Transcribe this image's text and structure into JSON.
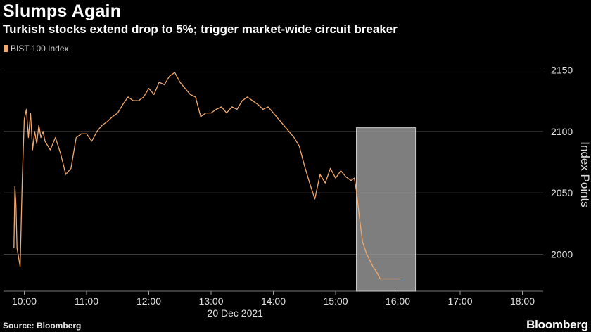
{
  "header": {
    "title": "Slumps Again",
    "subtitle": "Turkish stocks extend drop to 5%; trigger market-wide circuit breaker"
  },
  "footer": {
    "source": "Source: Bloomberg",
    "brand": "Bloomberg"
  },
  "colors": {
    "series": "#f2a96e",
    "highlight": "#9a9a9a",
    "grid": "#444444",
    "background": "#000000"
  },
  "chart_data": {
    "type": "line",
    "title": "Slumps Again",
    "subtitle": "Turkish stocks extend drop to 5%; trigger market-wide circuit breaker",
    "xlabel": "20 Dec 2021",
    "ylabel": "Index Points",
    "x_ticks": [
      "10:00",
      "11:00",
      "12:00",
      "13:00",
      "14:00",
      "15:00",
      "16:00",
      "17:00",
      "18:00"
    ],
    "y_ticks": [
      2000,
      2050,
      2100,
      2150
    ],
    "ylim": [
      1970,
      2160
    ],
    "legend_position": "top-left",
    "grid": "horizontal",
    "highlight_band": {
      "x_start": "15:20",
      "x_end": "16:17",
      "y_bottom": 1970,
      "y_top": 2103
    },
    "series": [
      {
        "name": "BIST 100 Index",
        "color": "#f2a96e",
        "x": [
          "09:50",
          "09:51",
          "09:52",
          "09:53",
          "09:54",
          "09:56",
          "09:58",
          "10:00",
          "10:02",
          "10:04",
          "10:06",
          "10:08",
          "10:10",
          "10:12",
          "10:14",
          "10:16",
          "10:18",
          "10:20",
          "10:25",
          "10:30",
          "10:35",
          "10:40",
          "10:45",
          "10:50",
          "10:55",
          "11:00",
          "11:05",
          "11:10",
          "11:15",
          "11:20",
          "11:25",
          "11:30",
          "11:35",
          "11:40",
          "11:45",
          "11:50",
          "11:55",
          "12:00",
          "12:05",
          "12:10",
          "12:15",
          "12:20",
          "12:25",
          "12:30",
          "12:35",
          "12:40",
          "12:45",
          "12:50",
          "12:55",
          "13:00",
          "13:05",
          "13:10",
          "13:15",
          "13:20",
          "13:25",
          "13:30",
          "13:35",
          "13:40",
          "13:45",
          "13:50",
          "13:55",
          "14:00",
          "14:05",
          "14:10",
          "14:15",
          "14:20",
          "14:25",
          "14:30",
          "14:35",
          "14:40",
          "14:45",
          "14:50",
          "14:55",
          "15:00",
          "15:05",
          "15:10",
          "15:15",
          "15:18",
          "15:20",
          "15:23",
          "15:26",
          "15:30",
          "15:33",
          "15:36",
          "15:40",
          "15:43",
          "15:46",
          "15:48",
          "15:50",
          "15:52",
          "15:54",
          "15:56",
          "15:58",
          "16:00",
          "16:03"
        ],
        "values": [
          2005,
          2055,
          2040,
          2005,
          2000,
          1990,
          2060,
          2110,
          2118,
          2095,
          2115,
          2085,
          2100,
          2090,
          2105,
          2095,
          2100,
          2092,
          2085,
          2095,
          2082,
          2065,
          2070,
          2095,
          2098,
          2098,
          2092,
          2100,
          2105,
          2108,
          2112,
          2115,
          2122,
          2128,
          2125,
          2125,
          2128,
          2135,
          2130,
          2140,
          2138,
          2145,
          2148,
          2140,
          2135,
          2130,
          2128,
          2112,
          2115,
          2115,
          2118,
          2120,
          2115,
          2120,
          2118,
          2125,
          2128,
          2125,
          2122,
          2118,
          2120,
          2115,
          2110,
          2105,
          2100,
          2095,
          2088,
          2072,
          2058,
          2045,
          2065,
          2058,
          2070,
          2062,
          2068,
          2063,
          2060,
          2062,
          2052,
          2030,
          2010,
          2000,
          1995,
          1990,
          1985,
          1980,
          1980,
          1980,
          1980,
          1980,
          1980,
          1980,
          1980,
          1980,
          1980
        ]
      }
    ]
  }
}
